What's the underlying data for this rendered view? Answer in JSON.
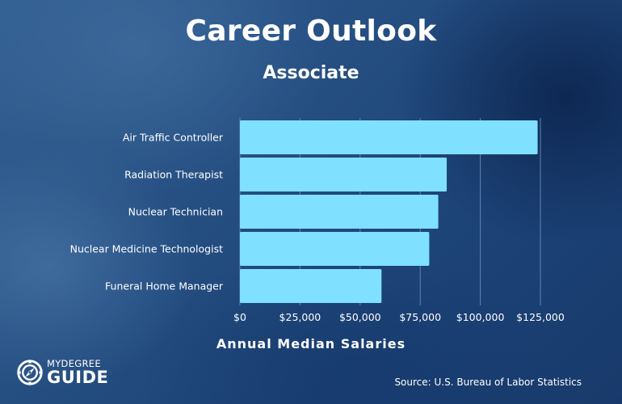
{
  "chart_data": {
    "type": "bar",
    "orientation": "horizontal",
    "title": "Career Outlook",
    "subtitle": "Associate",
    "xlabel": "Annual Median Salaries",
    "ylabel": "",
    "categories": [
      "Air Traffic Controller",
      "Radiation Therapist",
      "Nuclear Technician",
      "Nuclear Medicine Technologist",
      "Funeral Home Manager"
    ],
    "values": [
      123850,
      86030,
      82520,
      78760,
      58900
    ],
    "xlim": [
      0,
      125000
    ],
    "xticks": [
      0,
      25000,
      50000,
      75000,
      100000,
      125000
    ],
    "xtick_labels": [
      "$0",
      "$25,000",
      "$50,000",
      "$75,000",
      "$100,000",
      "$125,000"
    ],
    "grid": "vertical",
    "legend": "none",
    "bar_color": "#7fe0ff"
  },
  "source": "Source: U.S. Bureau of Labor Statistics",
  "logo": {
    "line1": "MYDEGREE",
    "line2": "GUIDE",
    "icon": "compass-icon"
  },
  "colors": {
    "background": "#234c7f",
    "text": "#ffffff",
    "bar": "#7fe0ff",
    "grid": "#5f86b3"
  }
}
